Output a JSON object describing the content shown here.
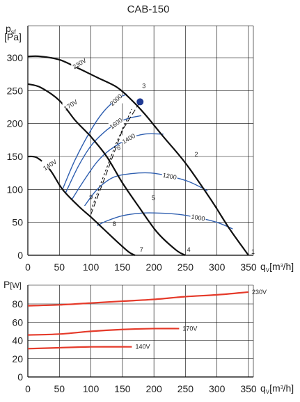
{
  "chart_data": [
    {
      "type": "line",
      "title": "CAB-150",
      "ylabel": "p",
      "ylabel_sub": "sf",
      "ylabel_unit": "[Pa]",
      "xlabel": "q",
      "xlabel_sub": "V",
      "xlabel_unit": "[m",
      "xlabel_unit_sup": "3",
      "xlabel_unit_end": "/h]",
      "xlim": [
        0,
        350
      ],
      "ylim": [
        0,
        300
      ],
      "xticks": [
        0,
        50,
        100,
        150,
        200,
        250,
        300,
        350
      ],
      "yticks": [
        0,
        50,
        100,
        150,
        200,
        250,
        300
      ],
      "grid": true,
      "series": [
        {
          "name": "230V",
          "color": "#111111",
          "x": [
            0,
            20,
            50,
            80,
            110,
            140,
            160,
            185,
            215,
            250,
            290,
            320,
            350
          ],
          "y": [
            302,
            302,
            297,
            284,
            270,
            256,
            240,
            215,
            180,
            140,
            85,
            40,
            0
          ]
        },
        {
          "name": "170V",
          "color": "#111111",
          "x": [
            0,
            20,
            50,
            75,
            100,
            125,
            150,
            175,
            205,
            235,
            250
          ],
          "y": [
            260,
            255,
            235,
            205,
            180,
            150,
            110,
            75,
            35,
            8,
            0
          ]
        },
        {
          "name": "140V",
          "color": "#111111",
          "x": [
            0,
            15,
            35,
            55,
            80,
            100,
            120,
            140,
            160,
            170
          ],
          "y": [
            150,
            148,
            130,
            100,
            75,
            58,
            40,
            22,
            5,
            0
          ]
        }
      ],
      "rpm_curves": [
        {
          "label": "2000",
          "color": "#2f5fb0",
          "x": [
            55,
            75,
            100,
            120,
            140,
            157
          ],
          "y": [
            100,
            145,
            190,
            218,
            236,
            245
          ]
        },
        {
          "label": "1600",
          "color": "#2f5fb0",
          "x": [
            60,
            80,
            100,
            120,
            140,
            160,
            180
          ],
          "y": [
            95,
            135,
            166,
            186,
            200,
            208,
            212
          ]
        },
        {
          "label": "1400",
          "color": "#2f5fb0",
          "x": [
            70,
            90,
            110,
            130,
            160,
            185,
            215
          ],
          "y": [
            85,
            115,
            142,
            160,
            177,
            184,
            184
          ]
        },
        {
          "label": "1200",
          "color": "#2f5fb0",
          "x": [
            90,
            110,
            135,
            165,
            195,
            225,
            255,
            285
          ],
          "y": [
            75,
            100,
            118,
            124,
            125,
            120,
            112,
            98
          ]
        },
        {
          "label": "1000",
          "color": "#2f5fb0",
          "x": [
            110,
            125,
            150,
            180,
            210,
            240,
            270,
            300,
            325
          ],
          "y": [
            45,
            52,
            60,
            64,
            64,
            62,
            57,
            50,
            40
          ]
        }
      ],
      "system_curves": [
        {
          "x": [
            100,
            125,
            150,
            178
          ],
          "y": [
            62,
            125,
            190,
            233
          ],
          "dash": "8,4"
        },
        {
          "x": [
            100,
            120,
            140,
            165
          ],
          "y": [
            68,
            120,
            170,
            222
          ],
          "dash": "3,3"
        }
      ],
      "points": [
        {
          "label": "1",
          "x": 350,
          "y": 0
        },
        {
          "label": "2",
          "x": 260,
          "y": 148
        },
        {
          "label": "3",
          "x": 177,
          "y": 252
        },
        {
          "label": "4",
          "x": 248,
          "y": 3
        },
        {
          "label": "5",
          "x": 192,
          "y": 82
        },
        {
          "label": "6",
          "x": 137,
          "y": 158
        },
        {
          "label": "7",
          "x": 173,
          "y": 3
        },
        {
          "label": "8",
          "x": 130,
          "y": 42
        },
        {
          "label": "9",
          "x": 93,
          "y": 83
        }
      ],
      "operating_point": {
        "x": 178,
        "y": 233,
        "color": "#1f3a93"
      },
      "voltage_labels": [
        {
          "text": "230V",
          "x": 82,
          "y": 291
        },
        {
          "text": "170V",
          "x": 68,
          "y": 228
        },
        {
          "text": "140V",
          "x": 35,
          "y": 137
        }
      ]
    },
    {
      "type": "line",
      "ylabel": "P",
      "ylabel_unit": "[W]",
      "ylabel_color": "#e03030",
      "xlabel": "q",
      "xlabel_sub": "V",
      "xlabel_unit": "[m",
      "xlabel_unit_sup": "3",
      "xlabel_unit_end": "/h]",
      "xlim": [
        0,
        350
      ],
      "ylim": [
        0,
        100
      ],
      "xticks": [
        0,
        50,
        100,
        150,
        200,
        250,
        300,
        350
      ],
      "yticks": [
        0,
        20,
        40,
        60,
        80
      ],
      "grid": true,
      "series": [
        {
          "name": "230V",
          "color": "#e53a2a",
          "x": [
            0,
            50,
            100,
            150,
            200,
            250,
            300,
            350
          ],
          "y": [
            78,
            79,
            81,
            83,
            85,
            88,
            90,
            93
          ]
        },
        {
          "name": "170V",
          "color": "#e53a2a",
          "x": [
            0,
            50,
            100,
            150,
            200,
            240
          ],
          "y": [
            46,
            47,
            50,
            52,
            53,
            53
          ]
        },
        {
          "name": "140V",
          "color": "#e53a2a",
          "x": [
            0,
            50,
            100,
            165
          ],
          "y": [
            31,
            32,
            33,
            33
          ]
        }
      ]
    }
  ]
}
